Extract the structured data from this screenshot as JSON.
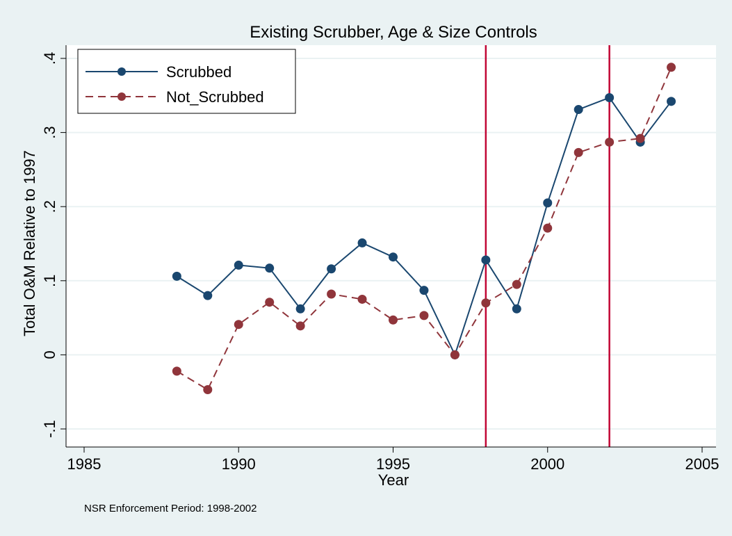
{
  "chart_data": {
    "type": "line",
    "title": "Existing Scrubber, Age & Size Controls",
    "xlabel": "Year",
    "ylabel": "Total O&M Relative to 1997",
    "xlim": [
      1985,
      2005
    ],
    "ylim": [
      -0.1,
      0.4
    ],
    "xticks": [
      1985,
      1990,
      1995,
      2000,
      2005
    ],
    "xtick_labels": [
      "1985",
      "1990",
      "1995",
      "2000",
      "2005"
    ],
    "yticks": [
      -0.1,
      0,
      0.1,
      0.2,
      0.3,
      0.4
    ],
    "ytick_labels": [
      "-.1",
      "0",
      ".1",
      ".2",
      ".3",
      ".4"
    ],
    "grid": "horizontal",
    "legend_position": "top-left",
    "x": [
      1988,
      1989,
      1990,
      1991,
      1992,
      1993,
      1994,
      1995,
      1996,
      1997,
      1998,
      1999,
      2000,
      2001,
      2002,
      2003,
      2004
    ],
    "series": [
      {
        "name": "Scrubbed",
        "style": "solid",
        "color": "#1a476f",
        "values": [
          0.106,
          0.08,
          0.121,
          0.117,
          0.062,
          0.116,
          0.151,
          0.132,
          0.087,
          0.0,
          0.128,
          0.062,
          0.205,
          0.331,
          0.347,
          0.287,
          0.342
        ]
      },
      {
        "name": "Not_Scrubbed",
        "style": "dashed",
        "color": "#90353b",
        "values": [
          -0.022,
          -0.047,
          0.041,
          0.071,
          0.039,
          0.082,
          0.075,
          0.047,
          0.053,
          0.0,
          0.07,
          0.095,
          0.171,
          0.273,
          0.287,
          0.292,
          0.388
        ]
      }
    ],
    "reference_lines": {
      "x": [
        1998,
        2002
      ],
      "color": "#c10534"
    },
    "note": "NSR Enforcement Period: 1998-2002"
  },
  "colors": {
    "background": "#eaf2f3",
    "plot_background": "#ffffff",
    "grid": "#eaf2f3"
  }
}
